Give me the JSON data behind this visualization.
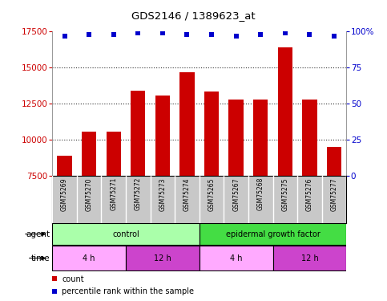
{
  "title": "GDS2146 / 1389623_at",
  "samples": [
    "GSM75269",
    "GSM75270",
    "GSM75271",
    "GSM75272",
    "GSM75273",
    "GSM75274",
    "GSM75265",
    "GSM75267",
    "GSM75268",
    "GSM75275",
    "GSM75276",
    "GSM75277"
  ],
  "counts": [
    8900,
    10600,
    10600,
    13400,
    13100,
    14700,
    13350,
    12800,
    12800,
    16400,
    12800,
    9500
  ],
  "percentile_ranks": [
    97,
    98,
    98,
    99,
    99,
    98,
    98,
    97,
    98,
    99,
    98,
    97
  ],
  "ylim_left": [
    7500,
    17500
  ],
  "ylim_right": [
    0,
    100
  ],
  "yticks_left": [
    7500,
    10000,
    12500,
    15000,
    17500
  ],
  "yticks_right": [
    0,
    25,
    50,
    75,
    100
  ],
  "ytick_right_labels": [
    "0",
    "25",
    "50",
    "75",
    "100%"
  ],
  "bar_color": "#cc0000",
  "dot_color": "#0000cc",
  "agent_groups": [
    {
      "label": "control",
      "start": 0,
      "end": 6,
      "color": "#aaffaa"
    },
    {
      "label": "epidermal growth factor",
      "start": 6,
      "end": 12,
      "color": "#44dd44"
    }
  ],
  "time_groups": [
    {
      "label": "4 h",
      "start": 0,
      "end": 3,
      "color": "#ffaaff"
    },
    {
      "label": "12 h",
      "start": 3,
      "end": 6,
      "color": "#cc44cc"
    },
    {
      "label": "4 h",
      "start": 6,
      "end": 9,
      "color": "#ffaaff"
    },
    {
      "label": "12 h",
      "start": 9,
      "end": 12,
      "color": "#cc44cc"
    }
  ],
  "legend_count_color": "#cc0000",
  "legend_dot_color": "#0000cc",
  "label_row_bg": "#c8c8c8",
  "divider_color": "#ffffff",
  "grid_dotted_color": "#333333",
  "chart_bg": "#ffffff",
  "chart_border": "#888888"
}
